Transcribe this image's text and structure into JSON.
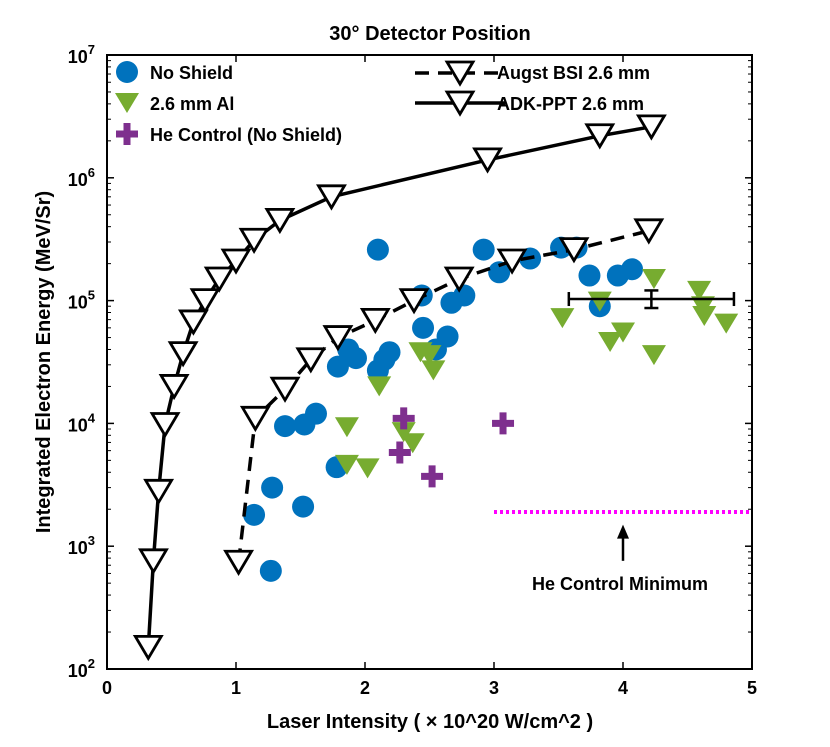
{
  "chart_data": {
    "type": "scatter",
    "title": "30° Detector Position",
    "xlabel": "Laser Intensity ( × 10^20 W/cm^2 )",
    "ylabel": "Integrated Electron Energy (MeV/Sr)",
    "xlim": [
      0,
      5
    ],
    "ylim_log10": [
      2,
      7
    ],
    "x_ticks": [
      "0",
      "1",
      "2",
      "3",
      "4",
      "5"
    ],
    "y_ticks": [
      {
        "exp": 2,
        "base": "10",
        "sup": "2"
      },
      {
        "exp": 3,
        "base": "10",
        "sup": "3"
      },
      {
        "exp": 4,
        "base": "10",
        "sup": "4"
      },
      {
        "exp": 5,
        "base": "10",
        "sup": "5"
      },
      {
        "exp": 6,
        "base": "10",
        "sup": "6"
      },
      {
        "exp": 7,
        "base": "10",
        "sup": "7"
      }
    ],
    "series": [
      {
        "name": "No Shield",
        "marker": "circle",
        "color": "#0072BD",
        "points": [
          [
            1.14,
            1800
          ],
          [
            1.27,
            630
          ],
          [
            1.28,
            3000
          ],
          [
            1.38,
            9500
          ],
          [
            1.52,
            2100
          ],
          [
            1.53,
            9800
          ],
          [
            1.62,
            12000
          ],
          [
            1.78,
            4400
          ],
          [
            1.79,
            29000
          ],
          [
            1.87,
            40000
          ],
          [
            1.93,
            34000
          ],
          [
            2.1,
            260000
          ],
          [
            2.1,
            27000
          ],
          [
            2.15,
            33000
          ],
          [
            2.19,
            38000
          ],
          [
            2.44,
            110000
          ],
          [
            2.45,
            60000
          ],
          [
            2.55,
            40000
          ],
          [
            2.64,
            51000
          ],
          [
            2.67,
            96000
          ],
          [
            2.77,
            110000
          ],
          [
            2.92,
            260000
          ],
          [
            3.04,
            170000
          ],
          [
            3.28,
            220000
          ],
          [
            3.52,
            270000
          ],
          [
            3.64,
            270000
          ],
          [
            3.74,
            160000
          ],
          [
            3.82,
            90000
          ],
          [
            3.96,
            160000
          ],
          [
            4.07,
            180000
          ]
        ]
      },
      {
        "name": "2.6 mm Al",
        "marker": "triangle-down",
        "color": "#77AC30",
        "points": [
          [
            1.86,
            9300
          ],
          [
            1.86,
            4600
          ],
          [
            2.02,
            4300
          ],
          [
            2.11,
            20000
          ],
          [
            2.3,
            8500
          ],
          [
            2.37,
            6900
          ],
          [
            2.43,
            38000
          ],
          [
            2.5,
            36000
          ],
          [
            2.53,
            27000
          ],
          [
            3.53,
            72000
          ],
          [
            3.82,
            98000
          ],
          [
            3.9,
            46000
          ],
          [
            4.0,
            55000
          ],
          [
            4.24,
            150000
          ],
          [
            4.24,
            36000
          ],
          [
            4.59,
            120000
          ],
          [
            4.62,
            90000
          ],
          [
            4.63,
            75000
          ],
          [
            4.8,
            65000
          ]
        ]
      },
      {
        "name": "He Control (No Shield)",
        "marker": "plus",
        "color": "#7E2F8E",
        "points": [
          [
            2.27,
            5800
          ],
          [
            2.3,
            11000
          ],
          [
            2.52,
            3700
          ],
          [
            3.07,
            10000
          ]
        ]
      },
      {
        "name": "Augst BSI 2.6 mm",
        "marker": "triangle-down-open",
        "line": "dashed",
        "color": "#000000",
        "points": [
          [
            1.02,
            740
          ],
          [
            1.15,
            11000
          ],
          [
            1.38,
            19000
          ],
          [
            1.58,
            33000
          ],
          [
            1.79,
            50000
          ],
          [
            2.08,
            69000
          ],
          [
            2.38,
            100000
          ],
          [
            2.73,
            150000
          ],
          [
            3.14,
            210000
          ],
          [
            3.62,
            260000
          ],
          [
            4.2,
            370000
          ]
        ]
      },
      {
        "name": "ADK-PPT 2.6 mm",
        "marker": "triangle-down-open",
        "line": "solid",
        "color": "#000000",
        "points": [
          [
            0.32,
            150
          ],
          [
            0.36,
            760
          ],
          [
            0.4,
            2800
          ],
          [
            0.45,
            9800
          ],
          [
            0.52,
            20000
          ],
          [
            0.59,
            37000
          ],
          [
            0.67,
            67000
          ],
          [
            0.76,
            100000
          ],
          [
            0.87,
            150000
          ],
          [
            1.0,
            210000
          ],
          [
            1.14,
            310000
          ],
          [
            1.34,
            450000
          ],
          [
            1.74,
            700000
          ],
          [
            2.95,
            1400000
          ],
          [
            3.82,
            2200000
          ],
          [
            4.22,
            2600000
          ]
        ]
      }
    ],
    "error_bar": {
      "x": 4.22,
      "y": 103000,
      "xerr": [
        3.58,
        4.86
      ],
      "yerr": [
        87000,
        121000
      ]
    },
    "reference_line": {
      "y": 1900,
      "x_range": [
        3.0,
        5.0
      ],
      "color": "#FF00FF",
      "style": "dotted"
    },
    "annotation": {
      "text": "He Control Minimum",
      "arrow_from": [
        4.0,
        760
      ],
      "arrow_to": [
        4.0,
        1500
      ]
    },
    "legend": {
      "position": "top, two columns",
      "entries": [
        "No Shield",
        "2.6 mm Al",
        "He Control (No Shield)",
        "Augst BSI 2.6 mm",
        "ADK-PPT 2.6 mm"
      ]
    }
  }
}
